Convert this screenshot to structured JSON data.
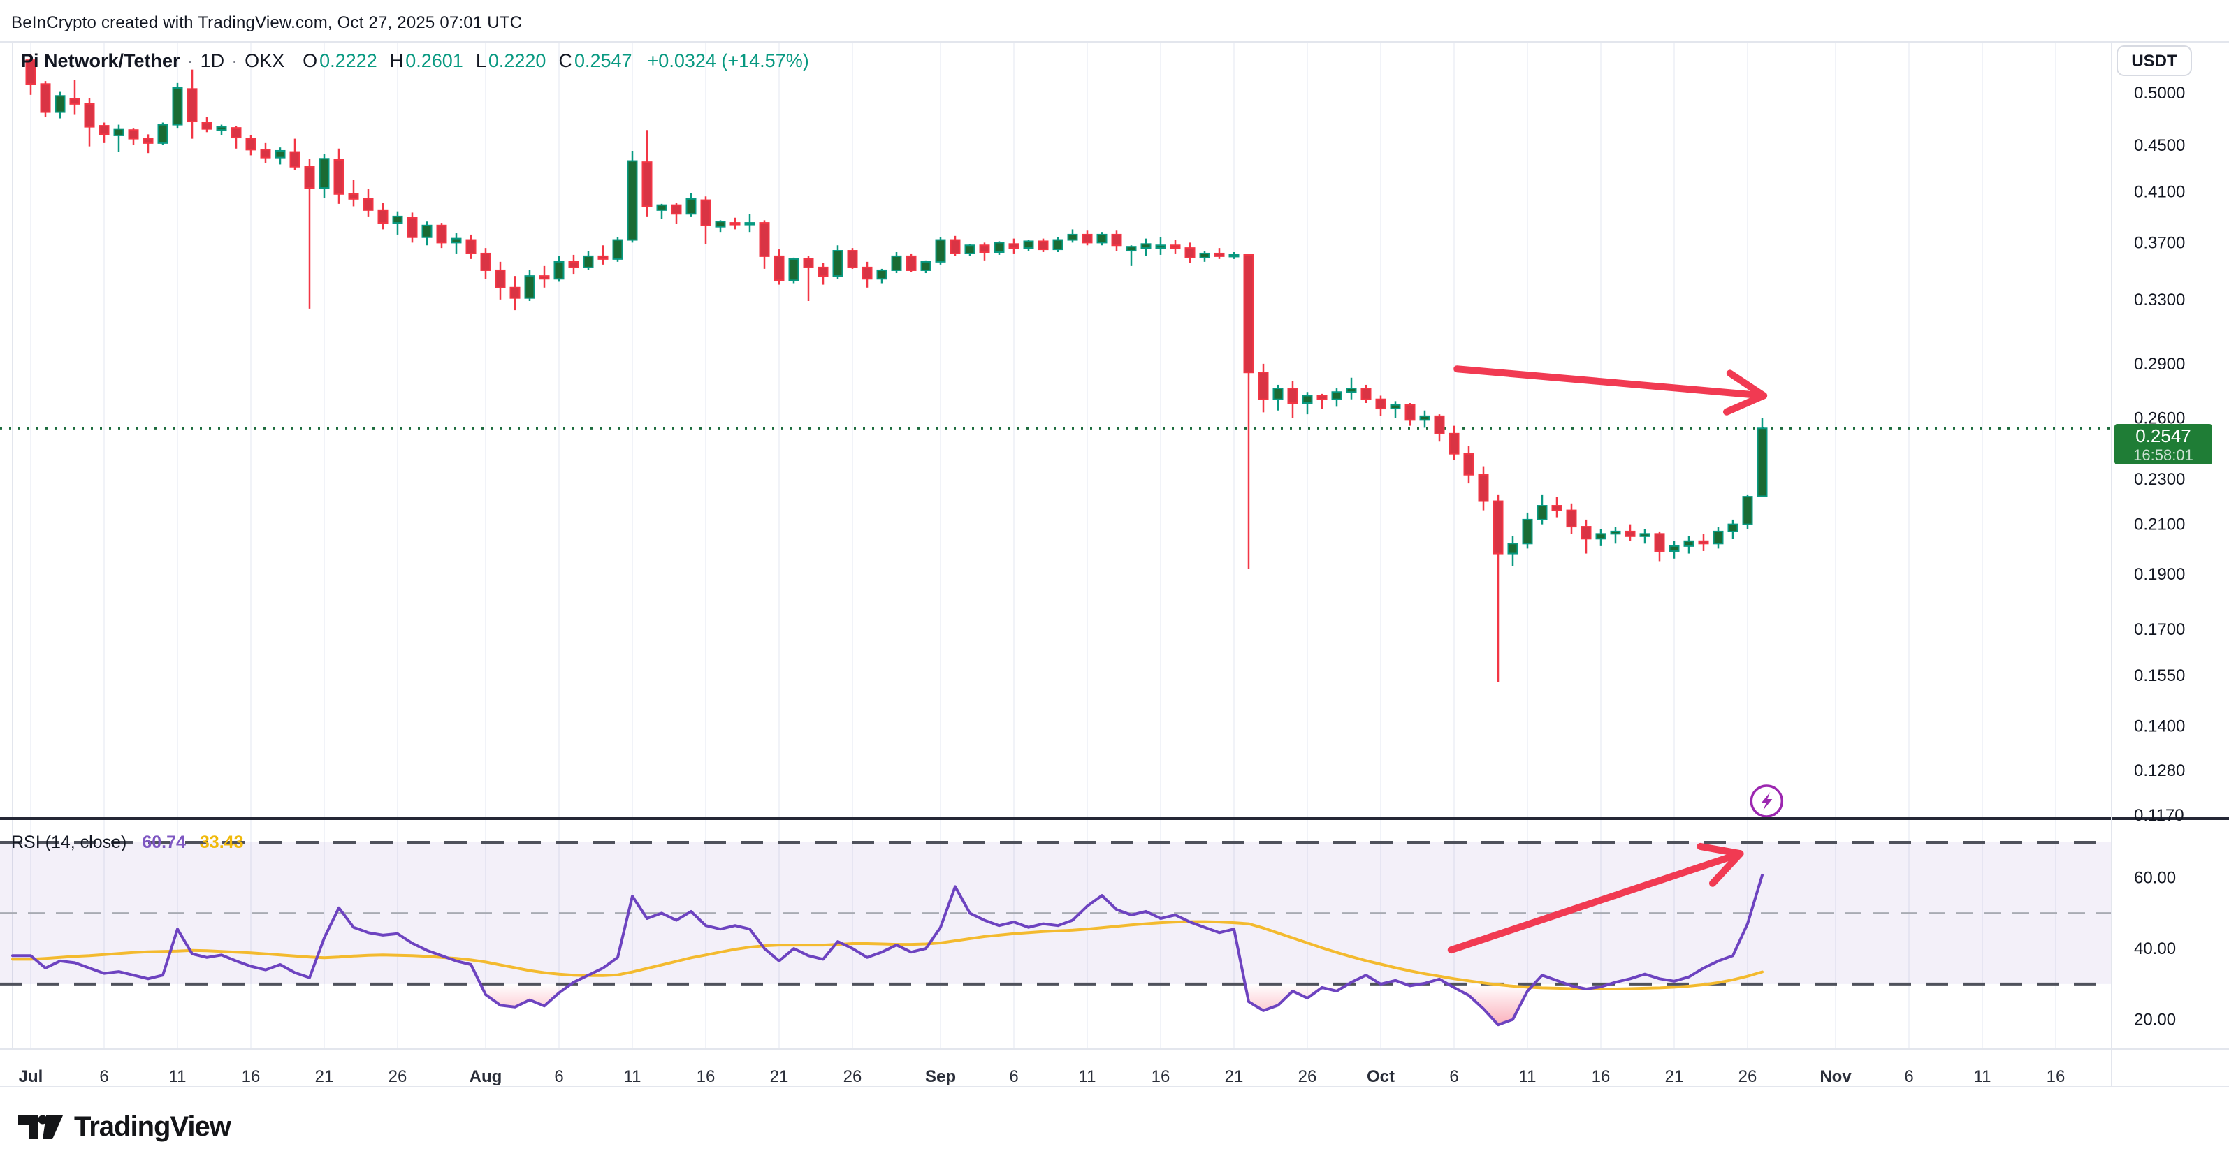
{
  "header": {
    "attribution": "BeInCrypto created with TradingView.com, Oct 27, 2025 07:01 UTC"
  },
  "symbol": {
    "title": "Pi Network/Tether",
    "separator": "·",
    "interval": "1D",
    "exchange": "OKX",
    "ohlc": [
      {
        "k": "O",
        "v": "0.2222"
      },
      {
        "k": "H",
        "v": "0.2601"
      },
      {
        "k": "L",
        "v": "0.2220"
      },
      {
        "k": "C",
        "v": "0.2547"
      }
    ],
    "change": "+0.0324 (+14.57%)"
  },
  "price_scale": {
    "currency": "USDT",
    "ticks": [
      [
        "0.5000",
        0.5
      ],
      [
        "0.4500",
        0.45
      ],
      [
        "0.4100",
        0.41
      ],
      [
        "0.3700",
        0.37
      ],
      [
        "0.3300",
        0.33
      ],
      [
        "0.2900",
        0.29
      ],
      [
        "0.2600",
        0.26
      ],
      [
        "0.2300",
        0.23
      ],
      [
        "0.2100",
        0.21
      ],
      [
        "0.1900",
        0.19
      ],
      [
        "0.1700",
        0.17
      ],
      [
        "0.1550",
        0.155
      ],
      [
        "0.1400",
        0.14
      ],
      [
        "0.1280",
        0.128
      ],
      [
        "0.1170",
        0.117
      ]
    ],
    "last_price": "0.2547",
    "countdown": "16:58:01"
  },
  "time_scale": {
    "ticks": [
      [
        "Jul",
        0,
        1
      ],
      [
        "6",
        5,
        0
      ],
      [
        "11",
        10,
        0
      ],
      [
        "16",
        15,
        0
      ],
      [
        "21",
        20,
        0
      ],
      [
        "26",
        25,
        0
      ],
      [
        "Aug",
        31,
        1
      ],
      [
        "6",
        36,
        0
      ],
      [
        "11",
        41,
        0
      ],
      [
        "16",
        46,
        0
      ],
      [
        "21",
        51,
        0
      ],
      [
        "26",
        56,
        0
      ],
      [
        "Sep",
        62,
        1
      ],
      [
        "6",
        67,
        0
      ],
      [
        "11",
        72,
        0
      ],
      [
        "16",
        77,
        0
      ],
      [
        "21",
        82,
        0
      ],
      [
        "26",
        87,
        0
      ],
      [
        "Oct",
        92,
        1
      ],
      [
        "6",
        97,
        0
      ],
      [
        "11",
        102,
        0
      ],
      [
        "16",
        107,
        0
      ],
      [
        "21",
        112,
        0
      ],
      [
        "26",
        117,
        0
      ],
      [
        "Nov",
        123,
        1
      ],
      [
        "6",
        128,
        0
      ],
      [
        "11",
        133,
        0
      ],
      [
        "16",
        138,
        0
      ]
    ]
  },
  "rsi": {
    "legend_title": "RSI (14, close)",
    "value": "60.74",
    "ma_value": "33.43",
    "ticks": [
      [
        "60.00",
        60
      ],
      [
        "40.00",
        40
      ],
      [
        "20.00",
        20
      ]
    ],
    "levels": {
      "upper": 70,
      "middle": 50,
      "lower": 30
    },
    "series": [
      38,
      34.5,
      36.5,
      36,
      34.5,
      33,
      33.5,
      32.5,
      31.5,
      32.5,
      45.5,
      38.5,
      37.5,
      38.2,
      36.5,
      35,
      34,
      35.5,
      33.2,
      31.8,
      43,
      51.5,
      46,
      44.5,
      43.8,
      44.2,
      41.5,
      39.5,
      38,
      36.5,
      35.5,
      27,
      24,
      23.5,
      25.5,
      23.8,
      27.5,
      30.5,
      32.5,
      34.5,
      37.5,
      54.8,
      48.5,
      50,
      48,
      50.5,
      46.5,
      45.5,
      46.5,
      45.5,
      40,
      36.5,
      40,
      38,
      37,
      42,
      40,
      37.5,
      39,
      41,
      39,
      40,
      46,
      57.5,
      50,
      48,
      46.5,
      47.5,
      46,
      47,
      46.5,
      48,
      52,
      55,
      51,
      49.5,
      50.5,
      48.5,
      49.5,
      47.5,
      46,
      44.5,
      45.5,
      25,
      22.5,
      24,
      28,
      26,
      29,
      28,
      30.5,
      32.5,
      30,
      31,
      29.5,
      30.2,
      31.4,
      29,
      26.8,
      23,
      18.5,
      20,
      28,
      32.5,
      31,
      29.5,
      28.6,
      29.2,
      30.5,
      31.5,
      32.8,
      31.5,
      30.8,
      32,
      34.5,
      36.5,
      38,
      47,
      60.74
    ],
    "ma_series": [
      37,
      37.2,
      37.5,
      37.8,
      38,
      38.3,
      38.6,
      38.9,
      39.1,
      39.2,
      39.3,
      39.5,
      39.4,
      39.2,
      39,
      38.8,
      38.5,
      38.2,
      37.9,
      37.6,
      37.4,
      37.6,
      37.9,
      38.1,
      38.2,
      38.1,
      38,
      37.8,
      37.5,
      37.2,
      36.8,
      36.2,
      35.4,
      34.6,
      33.8,
      33.2,
      32.8,
      32.5,
      32.4,
      32.4,
      32.6,
      33.4,
      34.4,
      35.4,
      36.4,
      37.4,
      38.2,
      39,
      39.8,
      40.4,
      40.8,
      41,
      41,
      41,
      41,
      41.2,
      41.4,
      41.4,
      41.3,
      41.2,
      41.2,
      41.3,
      41.6,
      42.2,
      42.8,
      43.4,
      43.8,
      44.2,
      44.5,
      44.8,
      45,
      45.2,
      45.5,
      45.9,
      46.3,
      46.7,
      47,
      47.3,
      47.5,
      47.6,
      47.6,
      47.5,
      47.3,
      47,
      45.8,
      44.4,
      43,
      41.6,
      40.2,
      38.9,
      37.7,
      36.6,
      35.6,
      34.6,
      33.7,
      32.9,
      32.2,
      31.5,
      30.9,
      30.3,
      29.8,
      29.4,
      29.1,
      28.9,
      28.8,
      28.7,
      28.6,
      28.6,
      28.6,
      28.7,
      28.8,
      28.9,
      29.1,
      29.4,
      29.8,
      30.4,
      31.2,
      32.2,
      33.43
    ]
  },
  "chart_data": {
    "type": "candlestick",
    "title": "Pi Network/Tether · 1D · OKX",
    "first_candle": "Jul 1",
    "last_candle": "Oct 27",
    "current_price": 0.2547,
    "price_axis_range": [
      0.117,
      0.5
    ],
    "candles": [
      [
        0.534,
        0.54,
        0.498,
        0.509
      ],
      [
        0.509,
        0.512,
        0.476,
        0.481
      ],
      [
        0.481,
        0.501,
        0.475,
        0.497
      ],
      [
        0.494,
        0.513,
        0.479,
        0.489
      ],
      [
        0.489,
        0.495,
        0.449,
        0.467
      ],
      [
        0.468,
        0.471,
        0.452,
        0.46
      ],
      [
        0.459,
        0.469,
        0.444,
        0.465
      ],
      [
        0.464,
        0.466,
        0.45,
        0.456
      ],
      [
        0.456,
        0.46,
        0.443,
        0.452
      ],
      [
        0.452,
        0.471,
        0.45,
        0.469
      ],
      [
        0.469,
        0.51,
        0.466,
        0.505
      ],
      [
        0.504,
        0.524,
        0.456,
        0.472
      ],
      [
        0.471,
        0.476,
        0.462,
        0.465
      ],
      [
        0.464,
        0.469,
        0.459,
        0.467
      ],
      [
        0.466,
        0.468,
        0.447,
        0.457
      ],
      [
        0.456,
        0.459,
        0.441,
        0.446
      ],
      [
        0.446,
        0.452,
        0.434,
        0.439
      ],
      [
        0.439,
        0.448,
        0.433,
        0.445
      ],
      [
        0.444,
        0.456,
        0.428,
        0.431
      ],
      [
        0.431,
        0.438,
        0.324,
        0.413
      ],
      [
        0.413,
        0.442,
        0.405,
        0.438
      ],
      [
        0.437,
        0.447,
        0.4,
        0.408
      ],
      [
        0.408,
        0.42,
        0.398,
        0.404
      ],
      [
        0.404,
        0.412,
        0.39,
        0.395
      ],
      [
        0.395,
        0.401,
        0.38,
        0.385
      ],
      [
        0.385,
        0.394,
        0.376,
        0.39
      ],
      [
        0.389,
        0.393,
        0.37,
        0.374
      ],
      [
        0.374,
        0.386,
        0.368,
        0.383
      ],
      [
        0.383,
        0.385,
        0.366,
        0.37
      ],
      [
        0.37,
        0.377,
        0.362,
        0.373
      ],
      [
        0.372,
        0.376,
        0.358,
        0.362
      ],
      [
        0.362,
        0.366,
        0.344,
        0.35
      ],
      [
        0.35,
        0.356,
        0.33,
        0.338
      ],
      [
        0.338,
        0.346,
        0.323,
        0.331
      ],
      [
        0.331,
        0.35,
        0.329,
        0.346
      ],
      [
        0.346,
        0.353,
        0.338,
        0.344
      ],
      [
        0.344,
        0.36,
        0.342,
        0.356
      ],
      [
        0.356,
        0.361,
        0.347,
        0.352
      ],
      [
        0.352,
        0.364,
        0.35,
        0.36
      ],
      [
        0.36,
        0.368,
        0.354,
        0.358
      ],
      [
        0.358,
        0.374,
        0.356,
        0.372
      ],
      [
        0.372,
        0.445,
        0.37,
        0.436
      ],
      [
        0.435,
        0.464,
        0.39,
        0.398
      ],
      [
        0.395,
        0.4,
        0.388,
        0.399
      ],
      [
        0.399,
        0.401,
        0.384,
        0.392
      ],
      [
        0.392,
        0.409,
        0.39,
        0.404
      ],
      [
        0.403,
        0.406,
        0.369,
        0.383
      ],
      [
        0.382,
        0.387,
        0.378,
        0.386
      ],
      [
        0.385,
        0.389,
        0.38,
        0.384
      ],
      [
        0.384,
        0.392,
        0.378,
        0.385
      ],
      [
        0.385,
        0.387,
        0.351,
        0.36
      ],
      [
        0.36,
        0.365,
        0.34,
        0.343
      ],
      [
        0.343,
        0.359,
        0.341,
        0.358
      ],
      [
        0.358,
        0.36,
        0.329,
        0.352
      ],
      [
        0.352,
        0.355,
        0.34,
        0.346
      ],
      [
        0.346,
        0.368,
        0.344,
        0.364
      ],
      [
        0.364,
        0.366,
        0.351,
        0.352
      ],
      [
        0.352,
        0.356,
        0.338,
        0.344
      ],
      [
        0.344,
        0.351,
        0.341,
        0.35
      ],
      [
        0.35,
        0.363,
        0.348,
        0.36
      ],
      [
        0.36,
        0.362,
        0.349,
        0.35
      ],
      [
        0.35,
        0.357,
        0.348,
        0.356
      ],
      [
        0.356,
        0.374,
        0.354,
        0.372
      ],
      [
        0.372,
        0.375,
        0.36,
        0.362
      ],
      [
        0.362,
        0.369,
        0.36,
        0.368
      ],
      [
        0.368,
        0.37,
        0.357,
        0.363
      ],
      [
        0.363,
        0.371,
        0.361,
        0.37
      ],
      [
        0.369,
        0.373,
        0.362,
        0.366
      ],
      [
        0.366,
        0.372,
        0.364,
        0.371
      ],
      [
        0.371,
        0.373,
        0.363,
        0.365
      ],
      [
        0.365,
        0.374,
        0.363,
        0.372
      ],
      [
        0.372,
        0.38,
        0.37,
        0.376
      ],
      [
        0.376,
        0.379,
        0.368,
        0.37
      ],
      [
        0.37,
        0.378,
        0.368,
        0.376
      ],
      [
        0.376,
        0.379,
        0.364,
        0.368
      ],
      [
        0.364,
        0.368,
        0.353,
        0.367
      ],
      [
        0.366,
        0.373,
        0.36,
        0.369
      ],
      [
        0.366,
        0.374,
        0.361,
        0.368
      ],
      [
        0.368,
        0.372,
        0.362,
        0.366
      ],
      [
        0.366,
        0.37,
        0.355,
        0.359
      ],
      [
        0.359,
        0.364,
        0.356,
        0.362
      ],
      [
        0.362,
        0.366,
        0.358,
        0.36
      ],
      [
        0.36,
        0.363,
        0.358,
        0.361
      ],
      [
        0.361,
        0.362,
        0.192,
        0.285
      ],
      [
        0.285,
        0.29,
        0.263,
        0.27
      ],
      [
        0.27,
        0.278,
        0.264,
        0.276
      ],
      [
        0.276,
        0.28,
        0.26,
        0.268
      ],
      [
        0.268,
        0.274,
        0.262,
        0.272
      ],
      [
        0.272,
        0.273,
        0.265,
        0.27
      ],
      [
        0.27,
        0.276,
        0.266,
        0.274
      ],
      [
        0.274,
        0.282,
        0.27,
        0.276
      ],
      [
        0.276,
        0.278,
        0.268,
        0.27
      ],
      [
        0.27,
        0.272,
        0.261,
        0.265
      ],
      [
        0.265,
        0.269,
        0.26,
        0.267
      ],
      [
        0.267,
        0.268,
        0.256,
        0.259
      ],
      [
        0.259,
        0.264,
        0.255,
        0.261
      ],
      [
        0.261,
        0.262,
        0.248,
        0.252
      ],
      [
        0.252,
        0.256,
        0.239,
        0.242
      ],
      [
        0.242,
        0.246,
        0.228,
        0.232
      ],
      [
        0.232,
        0.236,
        0.216,
        0.22
      ],
      [
        0.22,
        0.223,
        0.153,
        0.198
      ],
      [
        0.198,
        0.205,
        0.193,
        0.202
      ],
      [
        0.202,
        0.215,
        0.2,
        0.212
      ],
      [
        0.212,
        0.223,
        0.21,
        0.218
      ],
      [
        0.218,
        0.222,
        0.213,
        0.216
      ],
      [
        0.216,
        0.219,
        0.206,
        0.209
      ],
      [
        0.209,
        0.212,
        0.198,
        0.204
      ],
      [
        0.204,
        0.208,
        0.201,
        0.206
      ],
      [
        0.206,
        0.209,
        0.202,
        0.207
      ],
      [
        0.207,
        0.21,
        0.203,
        0.205
      ],
      [
        0.205,
        0.208,
        0.202,
        0.206
      ],
      [
        0.206,
        0.207,
        0.195,
        0.199
      ],
      [
        0.199,
        0.203,
        0.196,
        0.201
      ],
      [
        0.201,
        0.205,
        0.198,
        0.203
      ],
      [
        0.203,
        0.206,
        0.199,
        0.202
      ],
      [
        0.202,
        0.209,
        0.2,
        0.207
      ],
      [
        0.207,
        0.212,
        0.204,
        0.21
      ],
      [
        0.21,
        0.223,
        0.208,
        0.222
      ],
      [
        0.2222,
        0.2601,
        0.222,
        0.2547
      ]
    ]
  },
  "annotations": {
    "price_arrow": {
      "d1": 97.2,
      "p1": 0.287,
      "d2": 118.1,
      "p2": 0.272
    },
    "rsi_arrow": {
      "d1": 96.8,
      "r1": 39.6,
      "d2": 116.5,
      "r2": 66.8
    },
    "lightning": {
      "d": 118.3,
      "y": 1147
    }
  },
  "footer": {
    "brand": "TradingView"
  },
  "colors": {
    "up_fill": "#1a6b33",
    "up_border": "#089981",
    "down_fill": "#d93444",
    "down_border": "#f23645",
    "accent_green": "#089981",
    "text_dark": "#131722",
    "text_soft": "#2a2e39",
    "rsi_line": "#6d43c0",
    "rsi_ma": "#f3ba2f",
    "band": "rgba(126,87,194,0.09)",
    "level_dash": "#4f525c",
    "mid_dash": "#a8abb3",
    "arrow": "#f13a52",
    "dotted": "#1d6b3d",
    "label_bg": "#1f7d36",
    "label_sub": "rgba(255,255,255,0.78)",
    "divider": "#252836",
    "grid": "#f1f3f8",
    "axis_border": "#e3e6ed",
    "oversold": "#f5405c",
    "lightning": "#9c27b0"
  }
}
